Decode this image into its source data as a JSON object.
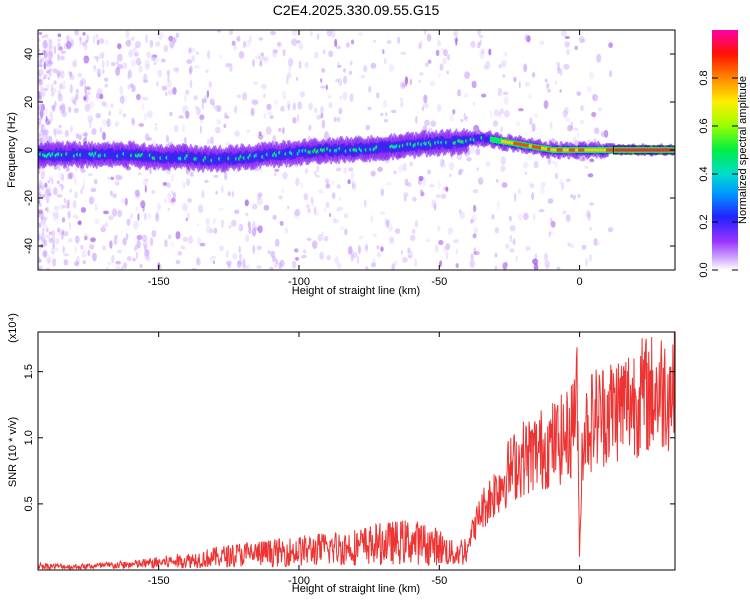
{
  "title": "C2E4.2025.330.09.55.G15",
  "chart_data": [
    {
      "type": "heatmap",
      "xlabel": "Height of straight line (km)",
      "ylabel": "Frequency (Hz)",
      "xlim": [
        -193,
        34
      ],
      "ylim": [
        -50,
        50
      ],
      "xticks": [
        -150,
        -100,
        -50,
        0
      ],
      "yticks": [
        -40,
        -20,
        0,
        20,
        40
      ],
      "grid": false,
      "colorbar": {
        "label": "Normalized spectral amplitude",
        "ticks": [
          0.0,
          0.2,
          0.4,
          0.6,
          0.8
        ],
        "range": [
          0,
          1
        ],
        "colormap": [
          "#ffffff",
          "#cc99ff",
          "#8800ff",
          "#2222ff",
          "#00ccff",
          "#00ff66",
          "#aaff00",
          "#ffee00",
          "#ff8800",
          "#ff0000",
          "#ff00aa"
        ]
      },
      "ridge": {
        "x": [
          -193,
          -180,
          -170,
          -160,
          -150,
          -140,
          -130,
          -120,
          -110,
          -100,
          -90,
          -80,
          -70,
          -60,
          -50,
          -45,
          -40,
          -35,
          -30,
          -25,
          -20,
          -15,
          -10,
          -5,
          0,
          5,
          10,
          15,
          20,
          34
        ],
        "y": [
          -2,
          -2,
          -2,
          -2,
          -3,
          -3,
          -4,
          -3,
          -2,
          -1,
          0,
          0,
          1,
          2,
          3,
          3,
          4,
          5,
          4,
          3,
          2,
          1,
          0,
          0,
          0,
          0,
          0,
          0,
          0,
          0
        ]
      }
    },
    {
      "type": "line",
      "xlabel": "Height of straight line (km)",
      "ylabel": "SNR (10 * v/v)",
      "ylabel_exponent": "(x10⁴)",
      "xlim": [
        -193,
        34
      ],
      "ylim": [
        0,
        1.8
      ],
      "xticks": [
        -150,
        -100,
        -50,
        0
      ],
      "yticks": [
        0.5,
        1.0,
        1.5
      ],
      "color": "#ee3333",
      "series": [
        {
          "x": [
            -193,
            -180,
            -170,
            -160,
            -150,
            -140,
            -130,
            -120,
            -110,
            -100,
            -90,
            -80,
            -70,
            -60,
            -50,
            -45,
            -40,
            -38,
            -35,
            -30,
            -25,
            -20,
            -15,
            -10,
            -5,
            -3,
            -1,
            0,
            1,
            3,
            5,
            10,
            15,
            20,
            25,
            30,
            34
          ],
          "y": [
            0.04,
            0.03,
            0.04,
            0.05,
            0.07,
            0.09,
            0.12,
            0.15,
            0.16,
            0.18,
            0.2,
            0.22,
            0.25,
            0.27,
            0.22,
            0.15,
            0.2,
            0.3,
            0.45,
            0.6,
            0.75,
            0.85,
            0.9,
            0.95,
            1.0,
            1.05,
            1.4,
            0.1,
            1.0,
            1.1,
            1.15,
            1.2,
            1.25,
            1.3,
            1.33,
            1.36,
            1.38
          ]
        }
      ]
    }
  ]
}
